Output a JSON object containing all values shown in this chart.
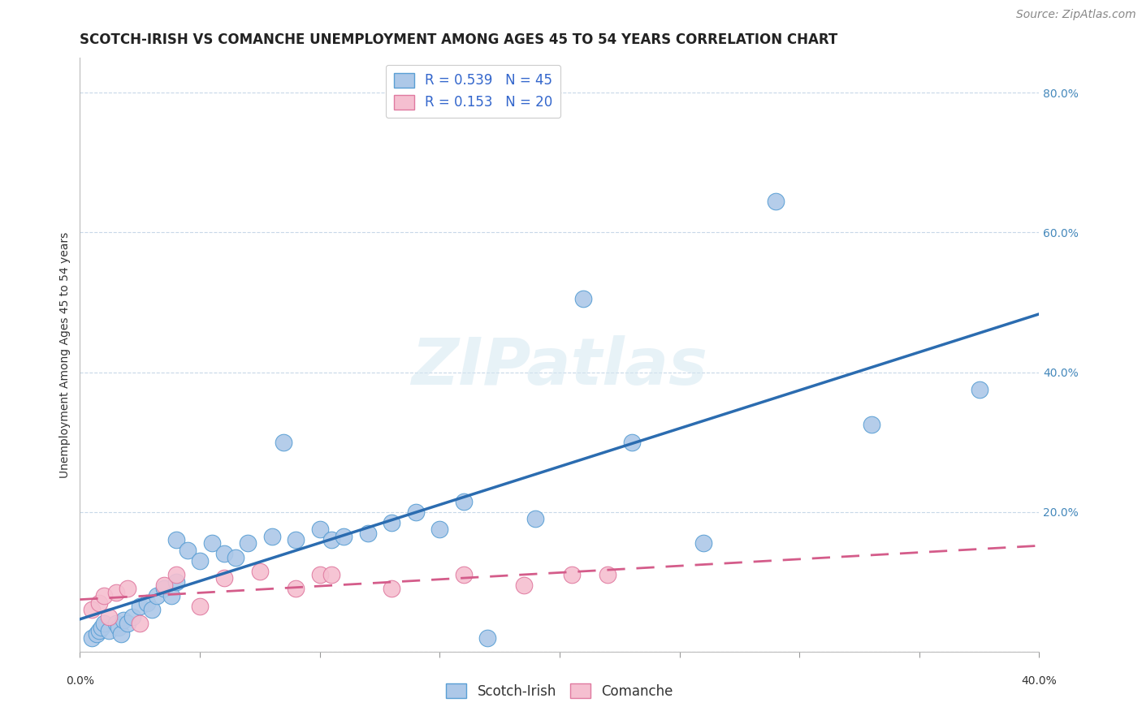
{
  "title": "SCOTCH-IRISH VS COMANCHE UNEMPLOYMENT AMONG AGES 45 TO 54 YEARS CORRELATION CHART",
  "source": "Source: ZipAtlas.com",
  "ylabel": "Unemployment Among Ages 45 to 54 years",
  "xlim": [
    0.0,
    0.4
  ],
  "ylim": [
    0.0,
    0.85
  ],
  "yticks": [
    0.0,
    0.2,
    0.4,
    0.6,
    0.8
  ],
  "ytick_labels": [
    "",
    "20.0%",
    "40.0%",
    "60.0%",
    "80.0%"
  ],
  "xticks": [
    0.0,
    0.05,
    0.1,
    0.15,
    0.2,
    0.25,
    0.3,
    0.35,
    0.4
  ],
  "scotch_irish_R": 0.539,
  "scotch_irish_N": 45,
  "comanche_R": 0.153,
  "comanche_N": 20,
  "scotch_irish_color": "#adc8e8",
  "scotch_irish_edge_color": "#5a9fd4",
  "scotch_irish_line_color": "#2b6cb0",
  "comanche_color": "#f5bfd0",
  "comanche_edge_color": "#e07aa0",
  "comanche_line_color": "#d45c8a",
  "watermark_text": "ZIPatlas",
  "scotch_irish_x": [
    0.005,
    0.007,
    0.008,
    0.009,
    0.01,
    0.012,
    0.015,
    0.016,
    0.017,
    0.018,
    0.02,
    0.022,
    0.025,
    0.028,
    0.03,
    0.032,
    0.035,
    0.038,
    0.04,
    0.04,
    0.045,
    0.05,
    0.055,
    0.06,
    0.065,
    0.07,
    0.08,
    0.085,
    0.09,
    0.1,
    0.105,
    0.11,
    0.12,
    0.13,
    0.14,
    0.15,
    0.16,
    0.17,
    0.19,
    0.21,
    0.23,
    0.26,
    0.29,
    0.33,
    0.375
  ],
  "scotch_irish_y": [
    0.02,
    0.025,
    0.03,
    0.035,
    0.04,
    0.03,
    0.04,
    0.035,
    0.025,
    0.045,
    0.04,
    0.05,
    0.065,
    0.07,
    0.06,
    0.08,
    0.09,
    0.08,
    0.1,
    0.16,
    0.145,
    0.13,
    0.155,
    0.14,
    0.135,
    0.155,
    0.165,
    0.3,
    0.16,
    0.175,
    0.16,
    0.165,
    0.17,
    0.185,
    0.2,
    0.175,
    0.215,
    0.02,
    0.19,
    0.505,
    0.3,
    0.155,
    0.645,
    0.325,
    0.375
  ],
  "comanche_x": [
    0.005,
    0.008,
    0.01,
    0.012,
    0.015,
    0.02,
    0.025,
    0.035,
    0.04,
    0.05,
    0.06,
    0.075,
    0.09,
    0.1,
    0.105,
    0.13,
    0.16,
    0.185,
    0.205,
    0.22
  ],
  "comanche_y": [
    0.06,
    0.07,
    0.08,
    0.05,
    0.085,
    0.09,
    0.04,
    0.095,
    0.11,
    0.065,
    0.105,
    0.115,
    0.09,
    0.11,
    0.11,
    0.09,
    0.11,
    0.095,
    0.11,
    0.11
  ],
  "background_color": "#ffffff",
  "grid_color": "#c8d8e8",
  "title_fontsize": 12,
  "axis_label_fontsize": 10,
  "tick_fontsize": 10,
  "legend_fontsize": 12,
  "source_fontsize": 10
}
